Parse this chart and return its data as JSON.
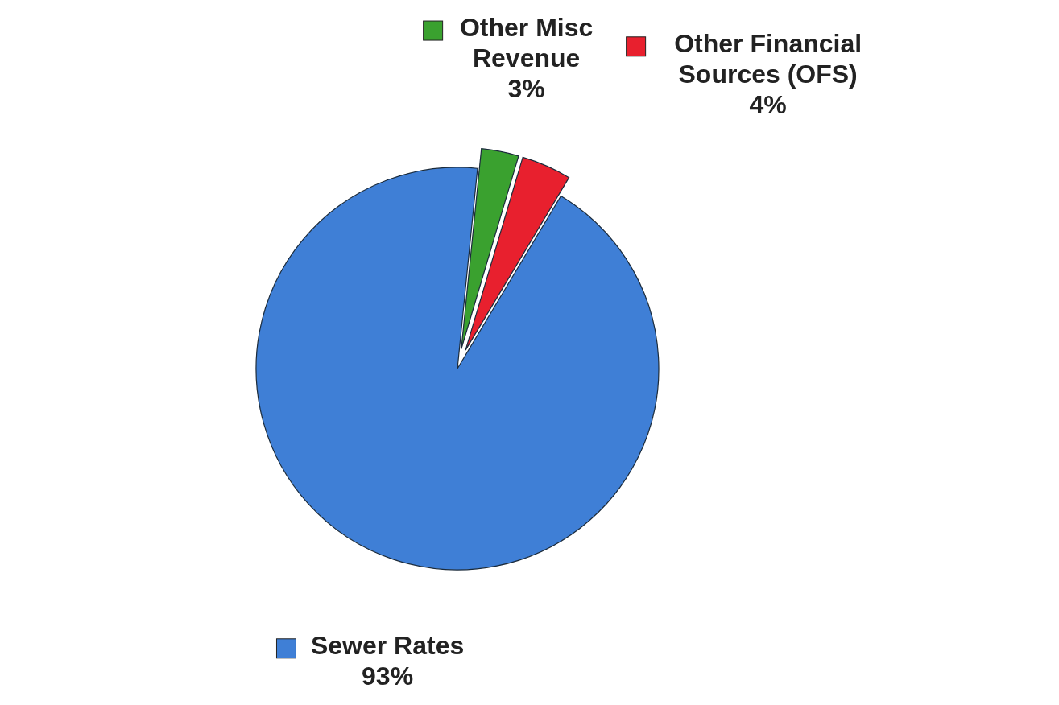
{
  "chart_data": {
    "type": "pie",
    "categories": [
      "Other Misc Revenue",
      "Other Financial Sources (OFS)",
      "Sewer Rates"
    ],
    "values": [
      3,
      4,
      93
    ],
    "colors": [
      "#3aa12f",
      "#e8202e",
      "#3f7fd6"
    ],
    "value_labels": [
      "3%",
      "4%",
      "93%"
    ],
    "legend": "top right"
  }
}
